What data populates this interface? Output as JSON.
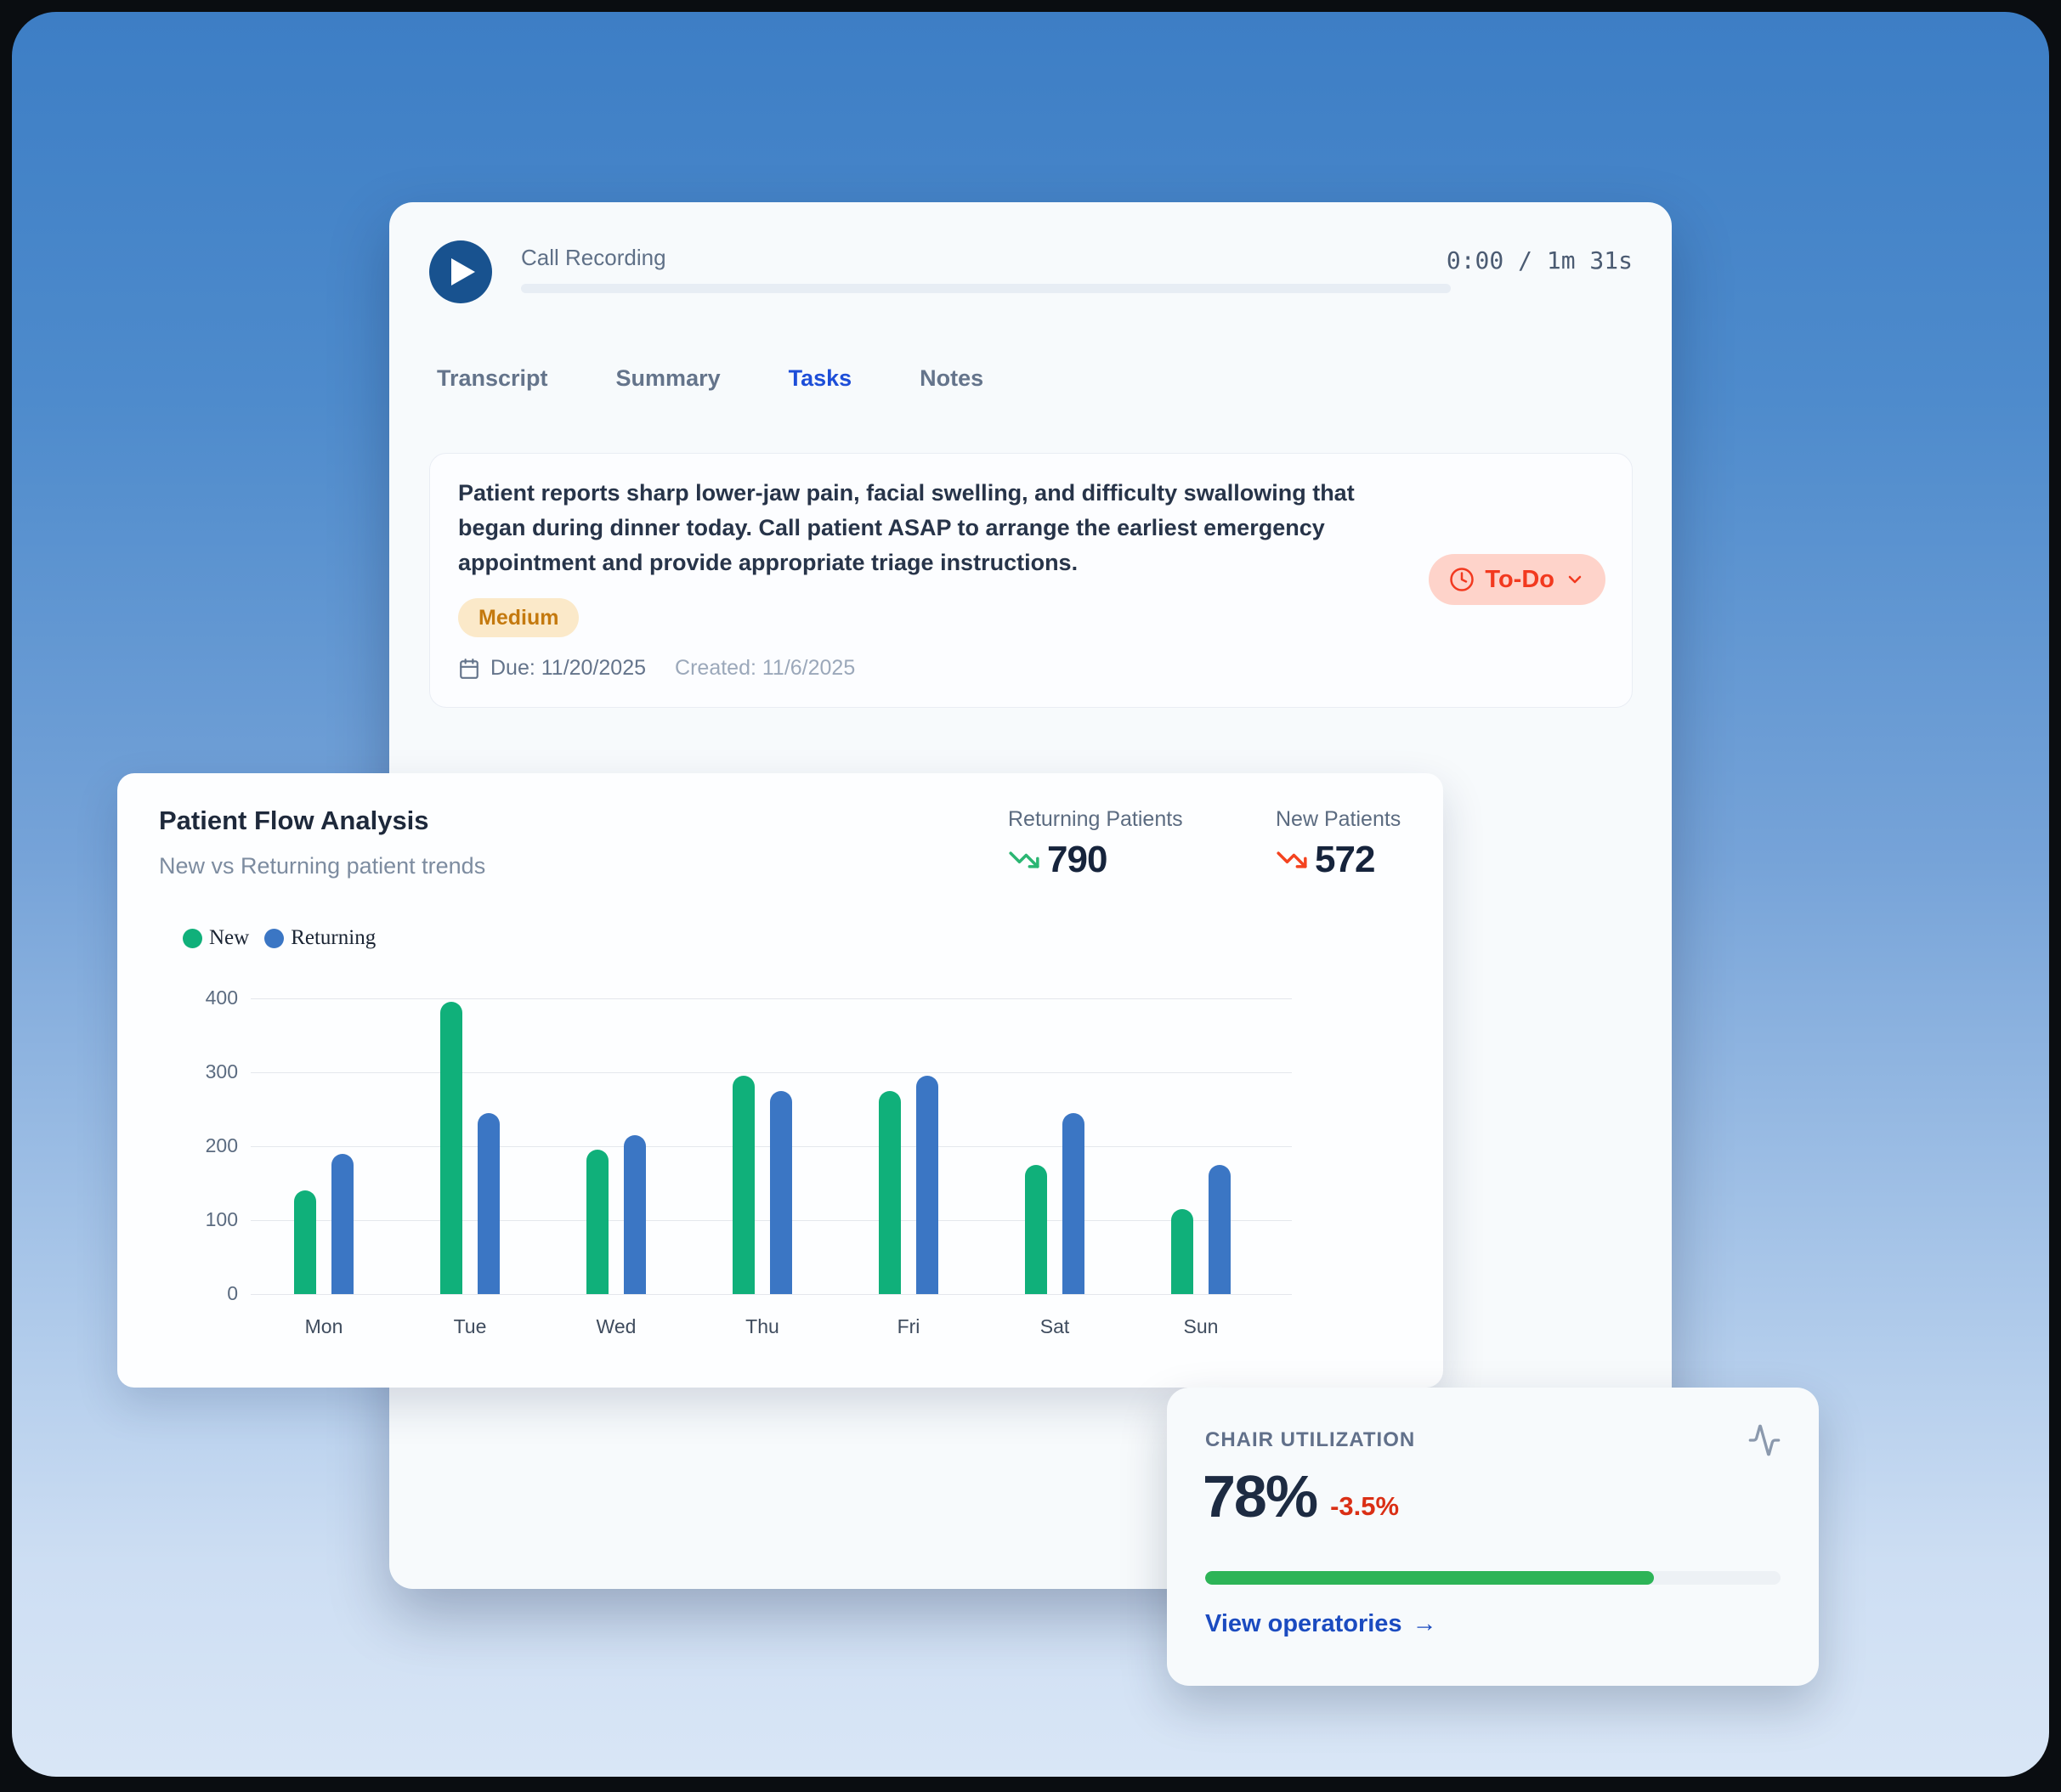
{
  "player": {
    "title": "Call Recording",
    "time": "0:00 / 1m 31s"
  },
  "tabs": {
    "items": [
      {
        "label": "Transcript",
        "active": false
      },
      {
        "label": "Summary",
        "active": false
      },
      {
        "label": "Tasks",
        "active": true
      },
      {
        "label": "Notes",
        "active": false
      }
    ]
  },
  "task": {
    "description": "Patient reports sharp lower-jaw pain, facial swelling, and difficulty swallowing that began during dinner today. Call patient ASAP to arrange the earliest emergency appointment and provide appropriate triage instructions.",
    "priority": "Medium",
    "priority_bg": "#fbe9c9",
    "priority_color": "#c4790e",
    "due": "Due: 11/20/2025",
    "created": "Created: 11/6/2025",
    "status": "To-Do",
    "status_bg": "#fed3ca",
    "status_color": "#f2391f"
  },
  "chart_card": {
    "title": "Patient Flow Analysis",
    "subtitle": "New vs Returning patient trends",
    "stats": [
      {
        "label": "Returning Patients",
        "value": "790",
        "trend": "down",
        "color": "#2bb673"
      },
      {
        "label": "New Patients",
        "value": "572",
        "trend": "down",
        "color": "#f4431f"
      }
    ]
  },
  "chart_data": {
    "type": "bar",
    "title": "Patient Flow Analysis",
    "categories": [
      "Mon",
      "Tue",
      "Wed",
      "Thu",
      "Fri",
      "Sat",
      "Sun"
    ],
    "series": [
      {
        "name": "New",
        "color": "#10b07a",
        "values": [
          140,
          395,
          195,
          295,
          275,
          175,
          115
        ]
      },
      {
        "name": "Returning",
        "color": "#3b76c4",
        "values": [
          190,
          245,
          215,
          275,
          295,
          245,
          175
        ]
      }
    ],
    "xlabel": "",
    "ylabel": "",
    "ylim": [
      0,
      400
    ],
    "yticks": [
      0,
      100,
      200,
      300,
      400
    ],
    "grid": true,
    "legend_position": "top-left"
  },
  "chair": {
    "label": "CHAIR UTILIZATION",
    "value": "78%",
    "delta": "-3.5%",
    "progress_pct": 78,
    "progress_color": "#2db457",
    "link": "View operatories"
  },
  "icons": {
    "arrow_right": "→"
  }
}
